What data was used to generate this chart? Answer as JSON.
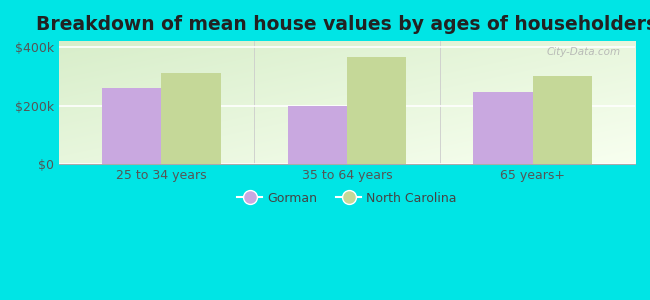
{
  "title": "Breakdown of mean house values by ages of householders",
  "categories": [
    "25 to 34 years",
    "35 to 64 years",
    "65 years+"
  ],
  "gorman_values": [
    260000,
    197000,
    248000
  ],
  "nc_values": [
    310000,
    365000,
    300000
  ],
  "gorman_color": "#c9a8e0",
  "nc_color": "#c5d898",
  "background_color": "#00e5e5",
  "ylim": [
    0,
    420000
  ],
  "yticks": [
    0,
    200000,
    400000
  ],
  "ytick_labels": [
    "$0",
    "$200k",
    "$400k"
  ],
  "bar_width": 0.32,
  "legend_labels": [
    "Gorman",
    "North Carolina"
  ],
  "watermark": "City-Data.com",
  "title_fontsize": 13.5,
  "tick_fontsize": 9,
  "legend_fontsize": 9,
  "fig_width": 6.5,
  "fig_height": 3.0,
  "dpi": 100
}
